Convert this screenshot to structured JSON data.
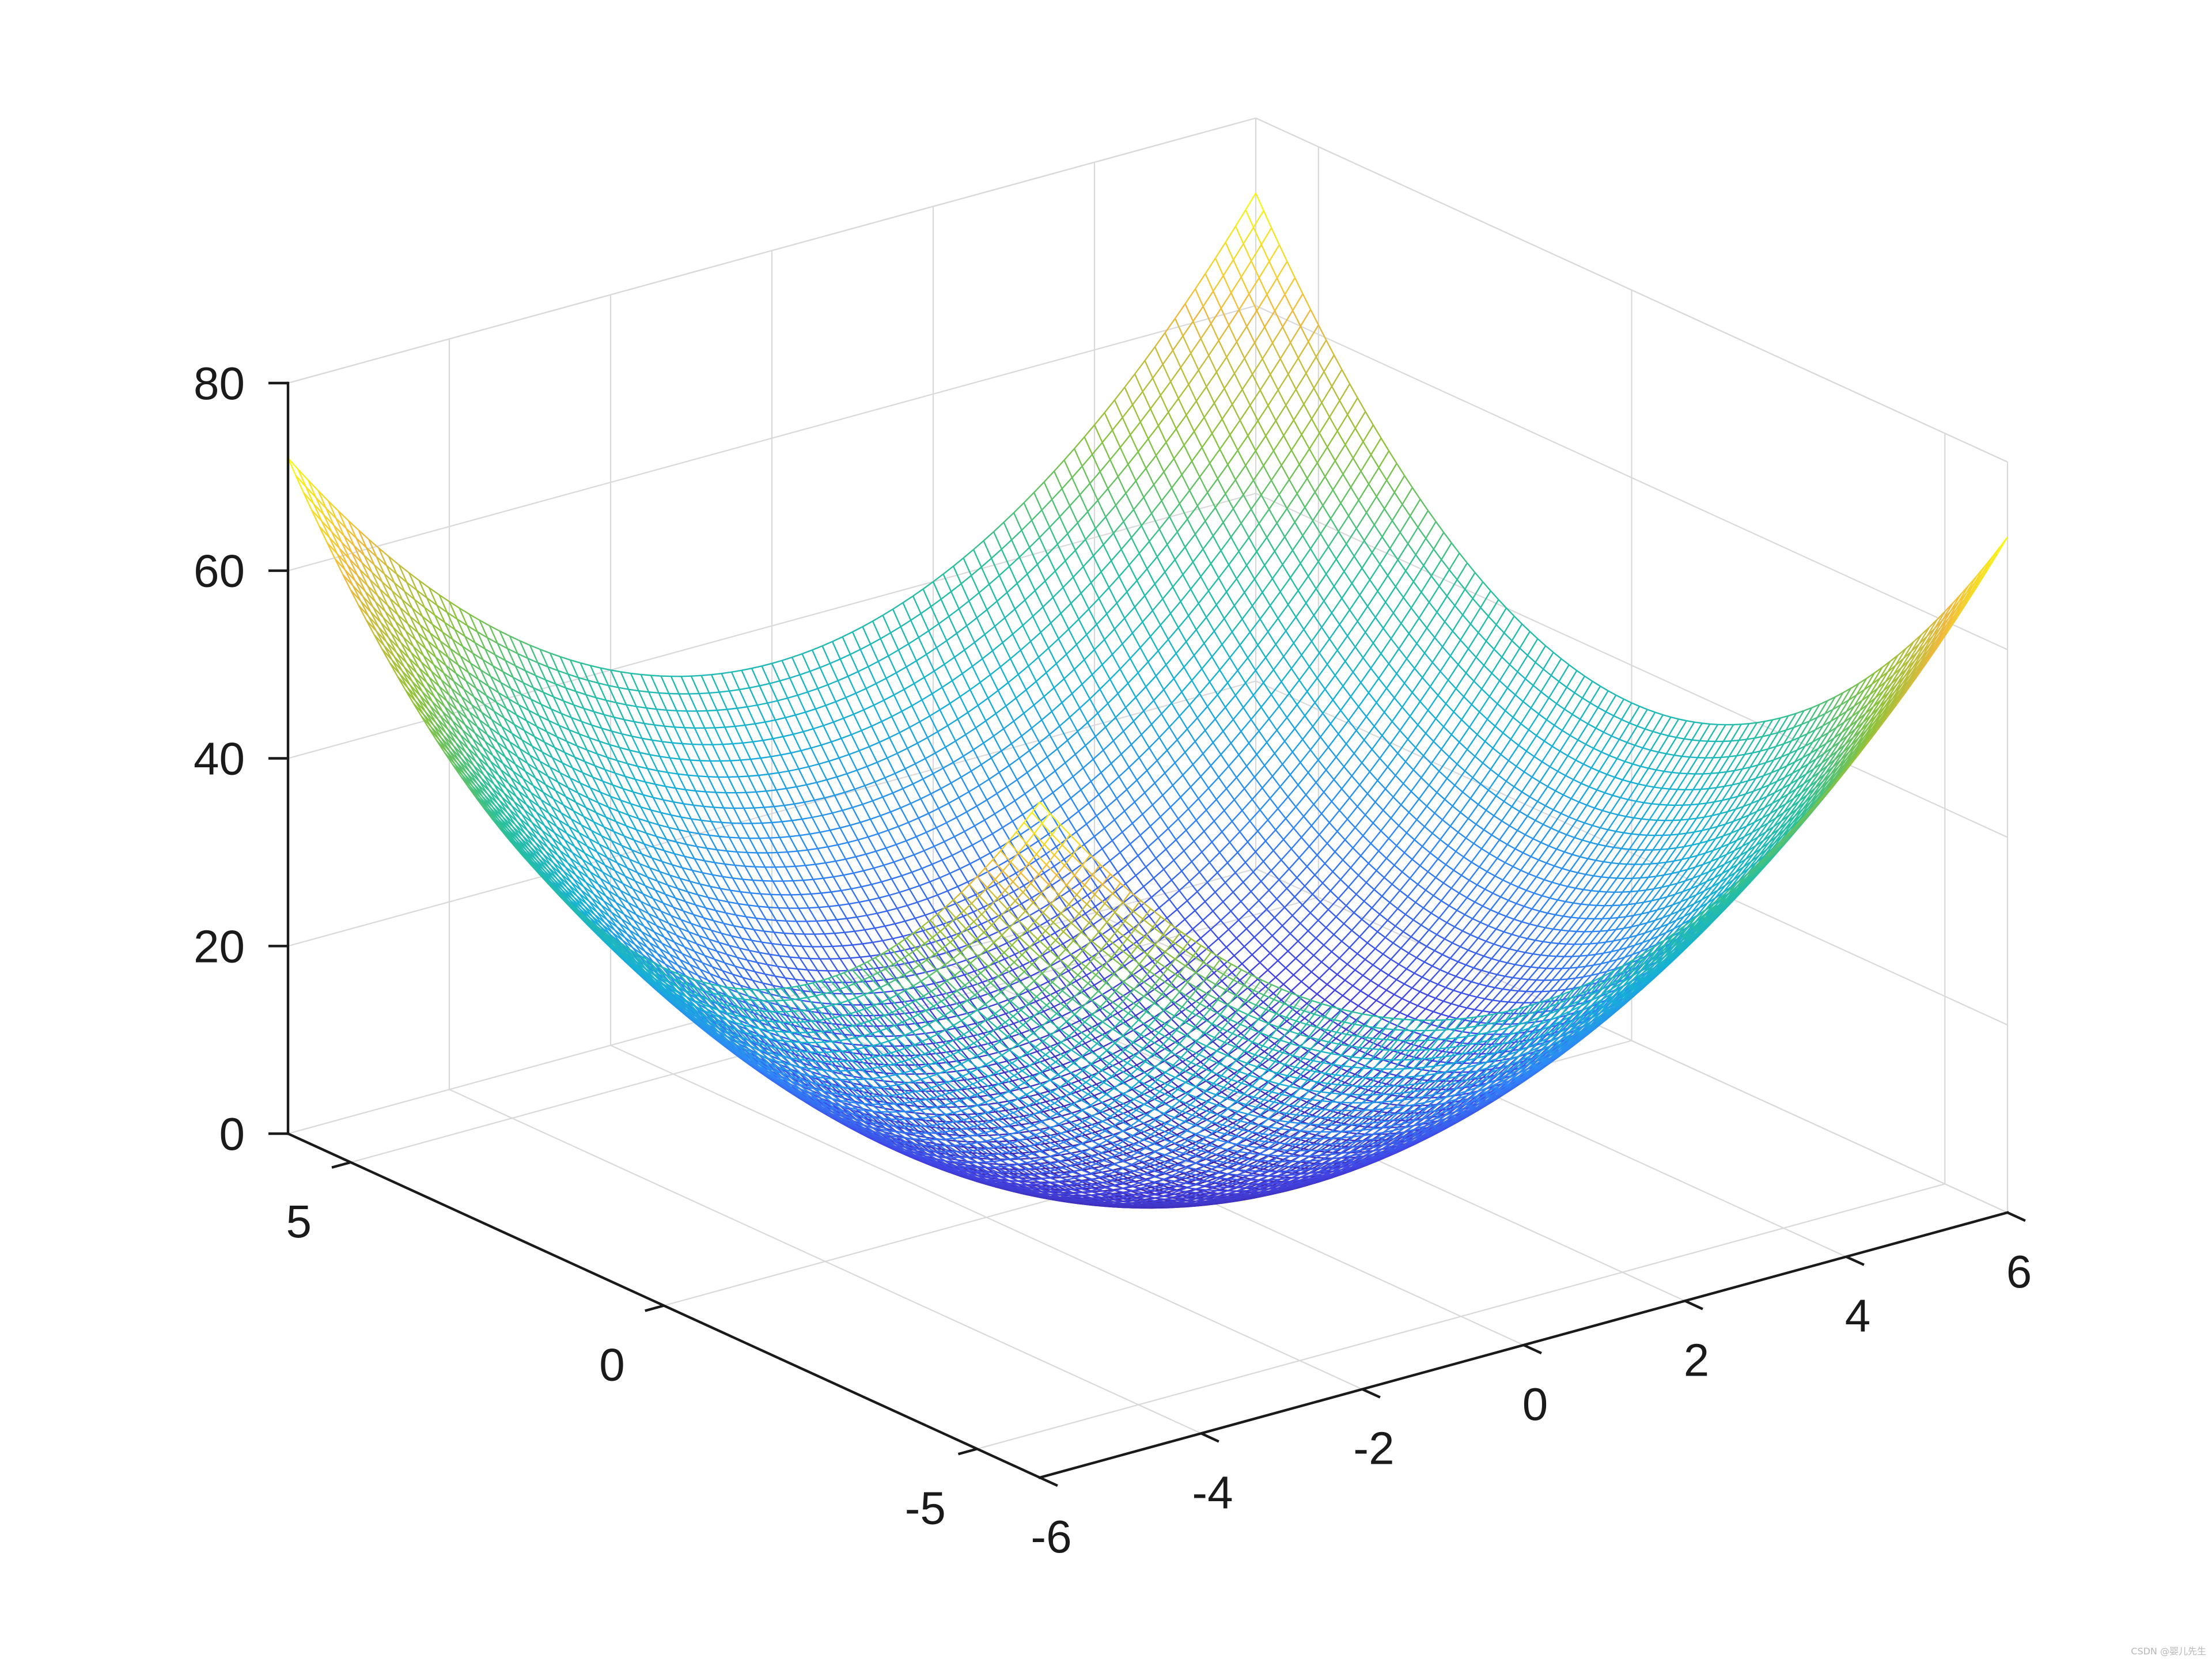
{
  "chart_data": {
    "type": "surface-mesh",
    "title": "",
    "xlabel": "",
    "ylabel": "",
    "zlabel": "",
    "function": "z = x^2 + y^2",
    "x_range": [
      -6,
      6
    ],
    "y_range": [
      -6,
      6
    ],
    "xlim": [
      -6,
      6
    ],
    "ylim": [
      -6,
      6
    ],
    "zlim": [
      0,
      80
    ],
    "mesh_step": 0.125,
    "x_ticks": [
      -6,
      -4,
      -2,
      0,
      2,
      4,
      6
    ],
    "x_tick_labels": [
      "-6",
      "-4",
      "-2",
      "0",
      "2",
      "4",
      "6"
    ],
    "y_ticks": [
      -5,
      0,
      5
    ],
    "y_tick_labels": [
      "-5",
      "0",
      "5"
    ],
    "z_ticks": [
      0,
      20,
      40,
      60,
      80
    ],
    "z_tick_labels": [
      "0",
      "20",
      "40",
      "60",
      "80"
    ],
    "grid": true,
    "colormap": "parula",
    "colormap_stops": [
      "#3e26a8",
      "#4145e6",
      "#2f86f8",
      "#15b1d5",
      "#2ac09b",
      "#8fc23a",
      "#f0b93d",
      "#f9fb15"
    ],
    "view": "azimuth -37.5, elevation 30"
  },
  "colors": {
    "axis": "#1a1a1a",
    "grid": "#d9d9d9",
    "background": "#ffffff"
  },
  "watermark": "CSDN @婴儿先生"
}
